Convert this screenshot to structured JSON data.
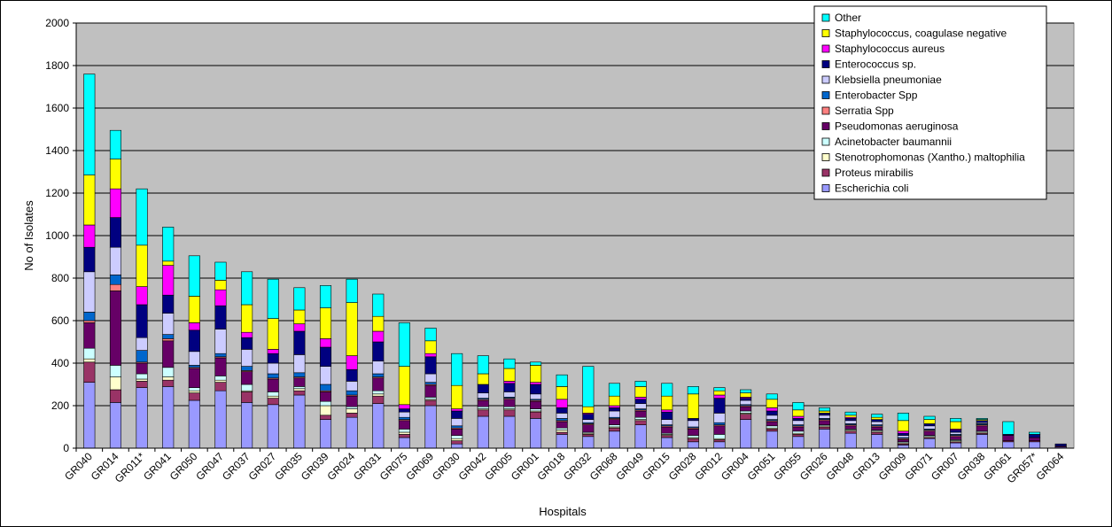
{
  "chart_data": {
    "type": "bar",
    "stacked": true,
    "xlabel": "Hospitals",
    "ylabel": "No of Isolates",
    "ylim": [
      0,
      2000
    ],
    "yticks": [
      0,
      200,
      400,
      600,
      800,
      1000,
      1200,
      1400,
      1600,
      1800,
      2000
    ],
    "grid": true,
    "legend_position": "top-right",
    "categories": [
      "GR040",
      "GR014",
      "GR011*",
      "GR041",
      "GR050",
      "GR047",
      "GR037",
      "GR027",
      "GR035",
      "GR039",
      "GR024",
      "GR031",
      "GR075",
      "GR069",
      "GR030",
      "GR042",
      "GR005",
      "GR001",
      "GR018",
      "GR032",
      "GR068",
      "GR049",
      "GR015",
      "GR028",
      "GR012",
      "GR004",
      "GR051",
      "GR055",
      "GR026",
      "GR048",
      "GR013",
      "GR009",
      "GR071",
      "GR007",
      "GR038",
      "GR061",
      "GR057*",
      "GR064"
    ],
    "series": [
      {
        "name": "Escherichia coli",
        "color": "#9999ff",
        "values": [
          310,
          215,
          285,
          290,
          225,
          270,
          215,
          205,
          250,
          135,
          145,
          210,
          50,
          200,
          20,
          150,
          150,
          140,
          65,
          55,
          80,
          110,
          50,
          30,
          30,
          135,
          80,
          55,
          90,
          70,
          65,
          15,
          45,
          25,
          65,
          30,
          30,
          5
        ]
      },
      {
        "name": "Proteus mirabilis",
        "color": "#993366",
        "values": [
          95,
          60,
          30,
          30,
          35,
          40,
          50,
          30,
          20,
          20,
          20,
          35,
          15,
          25,
          15,
          30,
          30,
          30,
          10,
          10,
          15,
          20,
          10,
          15,
          10,
          25,
          10,
          10,
          10,
          10,
          10,
          5,
          5,
          5,
          5,
          5,
          5,
          0
        ]
      },
      {
        "name": "Stenotrophomonas (Xantho.) maltophilia",
        "color": "#ffffcc",
        "values": [
          15,
          60,
          10,
          15,
          10,
          10,
          5,
          10,
          10,
          45,
          20,
          10,
          10,
          5,
          10,
          5,
          5,
          5,
          10,
          5,
          5,
          5,
          5,
          5,
          5,
          5,
          5,
          5,
          5,
          5,
          5,
          5,
          5,
          5,
          5,
          0,
          0,
          0
        ]
      },
      {
        "name": "Acinetobacter baumannii",
        "color": "#ccffff",
        "values": [
          50,
          55,
          25,
          45,
          15,
          20,
          30,
          20,
          10,
          20,
          10,
          15,
          15,
          10,
          15,
          10,
          10,
          10,
          10,
          5,
          10,
          10,
          5,
          10,
          20,
          10,
          10,
          10,
          5,
          5,
          5,
          5,
          5,
          5,
          5,
          0,
          0,
          0
        ]
      },
      {
        "name": "Pseudomonas aeruginosa",
        "color": "#660066",
        "values": [
          120,
          350,
          50,
          125,
          90,
          85,
          60,
          60,
          40,
          45,
          50,
          60,
          40,
          55,
          30,
          30,
          35,
          35,
          30,
          35,
          25,
          30,
          30,
          30,
          40,
          20,
          20,
          20,
          20,
          15,
          15,
          10,
          20,
          15,
          25,
          25,
          15,
          5
        ]
      },
      {
        "name": "Serratia Spp",
        "color": "#ff8080",
        "values": [
          10,
          30,
          5,
          10,
          5,
          5,
          5,
          5,
          5,
          5,
          5,
          5,
          5,
          5,
          5,
          5,
          5,
          5,
          5,
          5,
          5,
          5,
          5,
          5,
          5,
          5,
          5,
          5,
          5,
          5,
          5,
          5,
          5,
          5,
          5,
          0,
          0,
          0
        ]
      },
      {
        "name": "Enterobacter Spp",
        "color": "#0066cc",
        "values": [
          40,
          45,
          55,
          20,
          10,
          15,
          20,
          20,
          20,
          30,
          20,
          15,
          10,
          10,
          10,
          5,
          5,
          5,
          10,
          5,
          5,
          5,
          5,
          5,
          10,
          5,
          5,
          5,
          5,
          5,
          5,
          5,
          5,
          5,
          5,
          0,
          0,
          0
        ]
      },
      {
        "name": "Klebsiella pneumoniae",
        "color": "#ccccff",
        "values": [
          190,
          130,
          60,
          100,
          65,
          115,
          80,
          50,
          85,
          85,
          45,
          60,
          25,
          40,
          35,
          25,
          25,
          25,
          25,
          15,
          30,
          25,
          25,
          30,
          45,
          20,
          20,
          20,
          15,
          15,
          15,
          10,
          15,
          10,
          5,
          0,
          0,
          0
        ]
      },
      {
        "name": "Enterococcus sp.",
        "color": "#000080",
        "values": [
          115,
          140,
          155,
          85,
          100,
          110,
          55,
          45,
          110,
          90,
          55,
          90,
          15,
          80,
          35,
          40,
          40,
          45,
          25,
          25,
          15,
          20,
          35,
          10,
          70,
          10,
          20,
          10,
          10,
          10,
          10,
          10,
          10,
          10,
          10,
          5,
          15,
          10
        ]
      },
      {
        "name": "Staphylococcus aureus",
        "color": "#ff00ff",
        "values": [
          105,
          135,
          85,
          140,
          35,
          75,
          25,
          20,
          35,
          40,
          65,
          50,
          20,
          15,
          10,
          0,
          10,
          10,
          40,
          5,
          10,
          10,
          10,
          0,
          15,
          5,
          15,
          10,
          0,
          5,
          0,
          10,
          0,
          5,
          0,
          0,
          0,
          0
        ]
      },
      {
        "name": "Staphylococcus, coagulase negative",
        "color": "#ffff00",
        "values": [
          235,
          140,
          195,
          20,
          125,
          45,
          130,
          145,
          65,
          145,
          250,
          70,
          180,
          60,
          110,
          50,
          60,
          80,
          60,
          30,
          45,
          50,
          65,
          115,
          20,
          20,
          40,
          30,
          10,
          10,
          10,
          50,
          20,
          35,
          5,
          0,
          0,
          0
        ]
      },
      {
        "name": "Other",
        "color": "#00ffff",
        "values": [
          475,
          135,
          265,
          160,
          190,
          85,
          155,
          185,
          105,
          105,
          110,
          105,
          205,
          60,
          150,
          85,
          45,
          15,
          55,
          190,
          60,
          25,
          60,
          35,
          15,
          15,
          25,
          35,
          15,
          15,
          15,
          35,
          15,
          15,
          5,
          60,
          10,
          0
        ]
      }
    ]
  }
}
